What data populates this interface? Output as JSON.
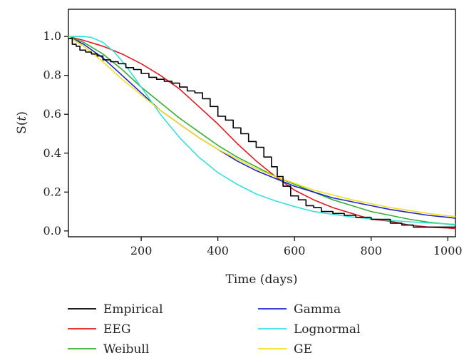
{
  "chart_data": {
    "type": "line",
    "title": "",
    "xlabel": "Time (days)",
    "ylabel_prefix": "S(",
    "ylabel_var": "t",
    "ylabel_suffix": ")",
    "xlim": [
      10,
      1020
    ],
    "ylim": [
      -0.03,
      1.14
    ],
    "x_ticks": [
      200,
      400,
      600,
      800,
      1000
    ],
    "y_ticks": [
      "0.0",
      "0.2",
      "0.4",
      "0.6",
      "0.8",
      "1.0"
    ],
    "grid": false,
    "legend_position": "below",
    "series": [
      {
        "name": "Empirical",
        "color": "#000000",
        "style": "step",
        "x": [
          10,
          20,
          30,
          40,
          55,
          70,
          85,
          100,
          120,
          140,
          160,
          180,
          200,
          220,
          240,
          260,
          280,
          300,
          320,
          340,
          360,
          380,
          400,
          420,
          440,
          460,
          480,
          500,
          520,
          540,
          555,
          570,
          590,
          610,
          630,
          650,
          670,
          700,
          730,
          760,
          800,
          850,
          880,
          910,
          1000,
          1020
        ],
        "y": [
          0.99,
          0.96,
          0.95,
          0.93,
          0.92,
          0.91,
          0.9,
          0.88,
          0.87,
          0.86,
          0.84,
          0.83,
          0.81,
          0.79,
          0.78,
          0.77,
          0.76,
          0.74,
          0.72,
          0.71,
          0.68,
          0.64,
          0.59,
          0.57,
          0.53,
          0.5,
          0.46,
          0.43,
          0.38,
          0.33,
          0.28,
          0.23,
          0.18,
          0.16,
          0.13,
          0.12,
          0.1,
          0.09,
          0.08,
          0.07,
          0.06,
          0.04,
          0.03,
          0.02,
          0.02,
          0.02
        ]
      },
      {
        "name": "EEG",
        "color": "#e31a1c",
        "x": [
          10,
          50,
          100,
          150,
          200,
          250,
          300,
          350,
          400,
          450,
          500,
          550,
          600,
          650,
          700,
          750,
          800,
          850,
          900,
          950,
          1000,
          1020
        ],
        "y": [
          1.0,
          0.98,
          0.95,
          0.91,
          0.86,
          0.8,
          0.73,
          0.64,
          0.55,
          0.45,
          0.36,
          0.28,
          0.21,
          0.16,
          0.12,
          0.09,
          0.06,
          0.05,
          0.03,
          0.02,
          0.015,
          0.012
        ]
      },
      {
        "name": "Weibull",
        "color": "#33b033",
        "x": [
          10,
          50,
          100,
          150,
          200,
          250,
          300,
          350,
          400,
          450,
          500,
          550,
          600,
          650,
          700,
          750,
          800,
          850,
          900,
          950,
          1000,
          1020
        ],
        "y": [
          1.0,
          0.97,
          0.91,
          0.83,
          0.74,
          0.66,
          0.58,
          0.51,
          0.44,
          0.38,
          0.33,
          0.28,
          0.24,
          0.2,
          0.16,
          0.13,
          0.1,
          0.08,
          0.06,
          0.045,
          0.035,
          0.03
        ]
      },
      {
        "name": "Gamma",
        "color": "#2222cc",
        "x": [
          10,
          50,
          100,
          150,
          200,
          250,
          300,
          350,
          400,
          450,
          500,
          550,
          600,
          650,
          700,
          750,
          800,
          850,
          900,
          950,
          1000,
          1020
        ],
        "y": [
          1.0,
          0.96,
          0.89,
          0.8,
          0.71,
          0.62,
          0.55,
          0.48,
          0.42,
          0.36,
          0.31,
          0.27,
          0.23,
          0.2,
          0.17,
          0.15,
          0.13,
          0.11,
          0.095,
          0.08,
          0.07,
          0.065
        ]
      },
      {
        "name": "Lognormal",
        "color": "#33e0e0",
        "x": [
          10,
          30,
          50,
          70,
          100,
          130,
          160,
          200,
          250,
          300,
          350,
          400,
          450,
          500,
          550,
          600,
          650,
          700,
          750,
          800,
          850,
          900,
          950,
          1000,
          1020
        ],
        "y": [
          1.0,
          1.0,
          1.0,
          0.995,
          0.97,
          0.92,
          0.85,
          0.74,
          0.6,
          0.48,
          0.38,
          0.3,
          0.24,
          0.19,
          0.155,
          0.125,
          0.1,
          0.085,
          0.072,
          0.062,
          0.054,
          0.047,
          0.041,
          0.036,
          0.034
        ]
      },
      {
        "name": "GE",
        "color": "#f0e020",
        "x": [
          10,
          50,
          100,
          150,
          200,
          250,
          300,
          350,
          400,
          450,
          500,
          550,
          600,
          650,
          700,
          750,
          800,
          850,
          900,
          950,
          1000,
          1020
        ],
        "y": [
          1.0,
          0.95,
          0.87,
          0.78,
          0.7,
          0.62,
          0.55,
          0.48,
          0.42,
          0.37,
          0.32,
          0.28,
          0.245,
          0.21,
          0.185,
          0.16,
          0.14,
          0.12,
          0.105,
          0.09,
          0.078,
          0.074
        ]
      }
    ]
  }
}
